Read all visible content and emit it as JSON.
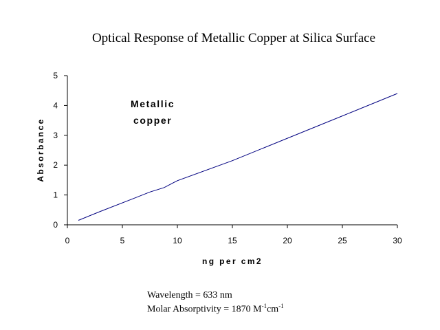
{
  "chart_data": {
    "type": "line",
    "title": "Optical Response of Metallic Copper at Silica Surface",
    "xlabel": "ng  per  cm2",
    "ylabel": "Absorbance",
    "xlim": [
      0,
      30
    ],
    "ylim": [
      0,
      5
    ],
    "xticks": [
      0,
      5,
      10,
      15,
      20,
      25,
      30
    ],
    "yticks": [
      0,
      1,
      2,
      3,
      4,
      5
    ],
    "grid": false,
    "legend": "none",
    "series": [
      {
        "color": "#000080",
        "x": [
          1,
          3,
          6,
          7.5,
          8.8,
          10,
          15,
          20,
          25,
          30
        ],
        "y": [
          0.15,
          0.45,
          0.88,
          1.1,
          1.25,
          1.48,
          2.15,
          2.9,
          3.65,
          4.4
        ]
      }
    ],
    "annotations": [
      "Metallic",
      "copper"
    ]
  },
  "notes": {
    "wavelength": "Wavelength = 633 nm",
    "absorptivity_prefix": "Molar Absorptivity = 1870 M",
    "absorptivity_exp1": "-1",
    "absorptivity_mid": "cm",
    "absorptivity_exp2": "-1"
  }
}
